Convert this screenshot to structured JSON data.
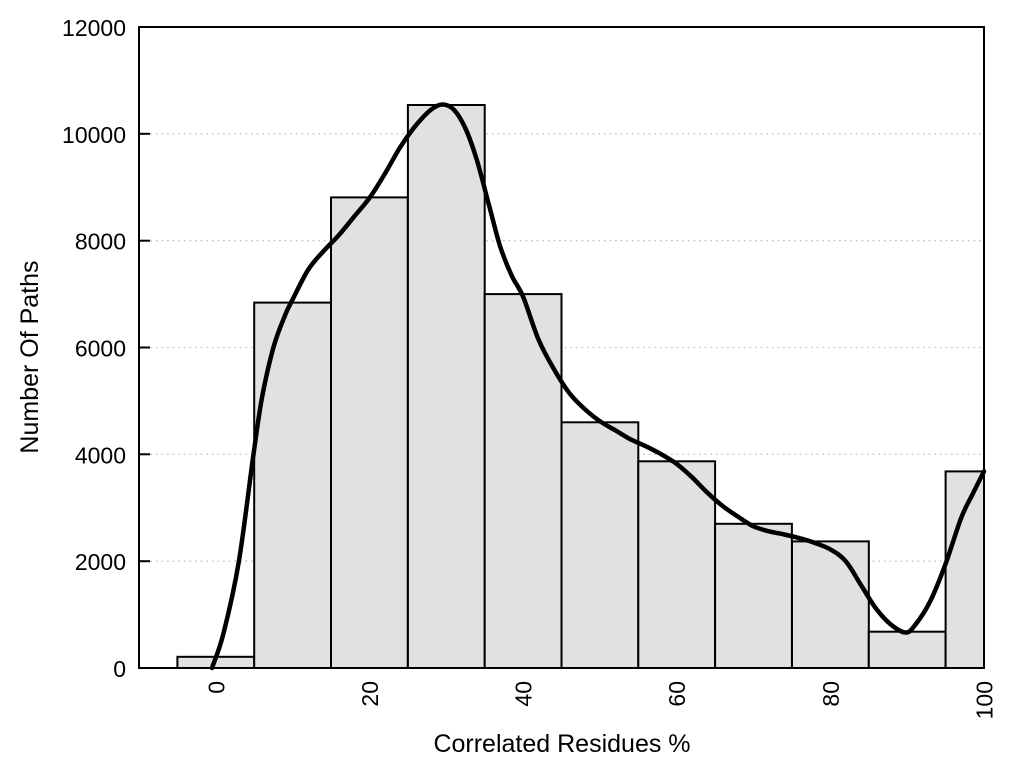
{
  "chart_data": {
    "type": "bar",
    "subtype": "histogram-with-smoothed-curve",
    "title": "",
    "xlabel": "Correlated Residues %",
    "ylabel": "Number Of Paths",
    "xlim": [
      -10,
      100
    ],
    "ylim": [
      0,
      12000
    ],
    "x_ticks": [
      0,
      20,
      40,
      60,
      80,
      100
    ],
    "y_ticks": [
      0,
      2000,
      4000,
      6000,
      8000,
      10000,
      12000
    ],
    "x_tick_rotation_deg": -90,
    "grid": {
      "horizontal_dotted": true,
      "at": [
        2000,
        4000,
        6000,
        8000,
        10000
      ]
    },
    "legend": "none",
    "bin_width": 10,
    "bins": [
      {
        "x0": -5,
        "x1": 5,
        "center": 0,
        "count": 210
      },
      {
        "x0": 5,
        "x1": 15,
        "center": 10,
        "count": 6840
      },
      {
        "x0": 15,
        "x1": 25,
        "center": 20,
        "count": 8810
      },
      {
        "x0": 25,
        "x1": 35,
        "center": 30,
        "count": 10540
      },
      {
        "x0": 35,
        "x1": 45,
        "center": 40,
        "count": 7000
      },
      {
        "x0": 45,
        "x1": 55,
        "center": 50,
        "count": 4600
      },
      {
        "x0": 55,
        "x1": 65,
        "center": 60,
        "count": 3870
      },
      {
        "x0": 65,
        "x1": 75,
        "center": 70,
        "count": 2700
      },
      {
        "x0": 75,
        "x1": 85,
        "center": 80,
        "count": 2370
      },
      {
        "x0": 85,
        "x1": 95,
        "center": 90,
        "count": 680
      },
      {
        "x0": 95,
        "x1": 100,
        "center": 100,
        "count": 3680
      }
    ],
    "curve": {
      "name": "smoothed-distribution",
      "points": [
        [
          -0.5,
          0
        ],
        [
          1,
          650
        ],
        [
          3,
          2000
        ],
        [
          4.9,
          4000
        ],
        [
          6,
          5050
        ],
        [
          7.5,
          6000
        ],
        [
          9,
          6600
        ],
        [
          10,
          6900
        ],
        [
          12,
          7450
        ],
        [
          14,
          7800
        ],
        [
          16,
          8100
        ],
        [
          18,
          8450
        ],
        [
          20,
          8800
        ],
        [
          22,
          9250
        ],
        [
          24,
          9750
        ],
        [
          26,
          10150
        ],
        [
          28,
          10450
        ],
        [
          29.5,
          10550
        ],
        [
          31,
          10450
        ],
        [
          32.5,
          10100
        ],
        [
          34,
          9500
        ],
        [
          35.5,
          8700
        ],
        [
          37,
          7900
        ],
        [
          38.5,
          7350
        ],
        [
          40,
          6950
        ],
        [
          42,
          6150
        ],
        [
          44,
          5600
        ],
        [
          46,
          5150
        ],
        [
          48,
          4850
        ],
        [
          50,
          4620
        ],
        [
          52,
          4450
        ],
        [
          54,
          4280
        ],
        [
          56,
          4150
        ],
        [
          58,
          4000
        ],
        [
          60,
          3820
        ],
        [
          62,
          3570
        ],
        [
          64,
          3280
        ],
        [
          66,
          3030
        ],
        [
          68,
          2830
        ],
        [
          70,
          2650
        ],
        [
          72,
          2560
        ],
        [
          74,
          2500
        ],
        [
          76,
          2430
        ],
        [
          78,
          2340
        ],
        [
          80,
          2220
        ],
        [
          82,
          2000
        ],
        [
          84,
          1550
        ],
        [
          86,
          1100
        ],
        [
          88,
          800
        ],
        [
          89.8,
          665
        ],
        [
          91,
          800
        ],
        [
          93,
          1250
        ],
        [
          95,
          1950
        ],
        [
          97,
          2800
        ],
        [
          98.5,
          3250
        ],
        [
          100,
          3680
        ]
      ]
    },
    "colors": {
      "background": "#ffffff",
      "bar_fill": "#e1e1e1",
      "bar_border": "#000000",
      "curve": "#000000",
      "grid": "#c8c8c8",
      "axis": "#000000",
      "text": "#000000"
    }
  }
}
